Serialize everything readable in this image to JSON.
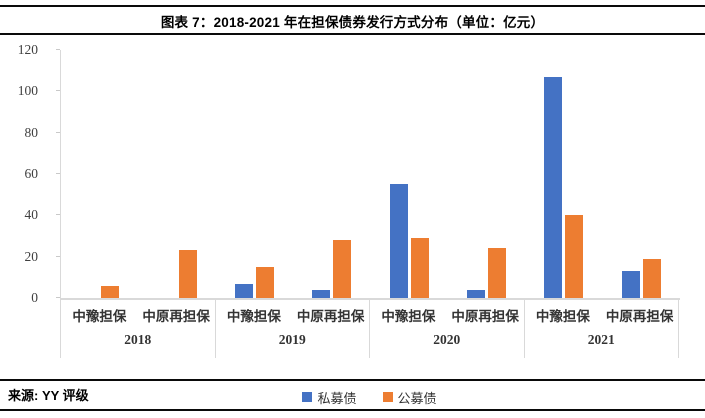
{
  "title": {
    "text": "图表 7：2018-2021 年在担保债券发行方式分布（单位：亿元）"
  },
  "footer": {
    "source": "来源: YY 评级"
  },
  "colors": {
    "series_private": "#4472C4",
    "series_public": "#ED7D31",
    "axis_line": "#D9D9D9",
    "axis_text": "#404040",
    "rule_line": "#0A0A0A"
  },
  "chart_data": {
    "type": "bar",
    "title": "图表 7：2018-2021 年在担保债券发行方式分布（单位：亿元）",
    "unit": "亿元",
    "ylim": [
      0,
      120
    ],
    "yticks": [
      0,
      20,
      40,
      60,
      80,
      100,
      120
    ],
    "grid": false,
    "legend_position": "bottom-center",
    "legend": [
      {
        "label": "私募债",
        "color": "#4472C4"
      },
      {
        "label": "公募债",
        "color": "#ED7D31"
      }
    ],
    "groups": [
      {
        "year": "2018",
        "categories": [
          "中豫担保",
          "中原再担保"
        ],
        "series": [
          {
            "name": "私募债",
            "values": [
              0,
              0
            ]
          },
          {
            "name": "公募债",
            "values": [
              6,
              23
            ]
          }
        ]
      },
      {
        "year": "2019",
        "categories": [
          "中豫担保",
          "中原再担保"
        ],
        "series": [
          {
            "name": "私募债",
            "values": [
              7,
              4
            ]
          },
          {
            "name": "公募债",
            "values": [
              15,
              28
            ]
          }
        ]
      },
      {
        "year": "2020",
        "categories": [
          "中豫担保",
          "中原再担保"
        ],
        "series": [
          {
            "name": "私募债",
            "values": [
              55,
              4
            ]
          },
          {
            "name": "公募债",
            "values": [
              29,
              24
            ]
          }
        ]
      },
      {
        "year": "2021",
        "categories": [
          "中豫担保",
          "中原再担保"
        ],
        "series": [
          {
            "name": "私募债",
            "values": [
              107,
              13
            ]
          },
          {
            "name": "公募债",
            "values": [
              40,
              19
            ]
          }
        ]
      }
    ]
  }
}
